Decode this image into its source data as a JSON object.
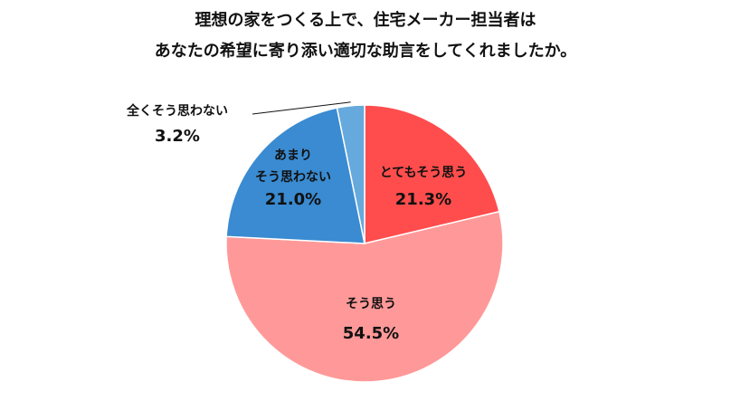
{
  "chart_data": {
    "type": "pie",
    "title_lines": [
      "理想の家をつくる上で、住宅メーカー担当者は",
      "あなたの希望に寄り添い適切な助言をしてくれましたか。"
    ],
    "slices": [
      {
        "label_lines": [
          "とてもそう思う"
        ],
        "value": 21.3,
        "value_label": "21.3%",
        "color": "#ff4d4d"
      },
      {
        "label_lines": [
          "そう思う"
        ],
        "value": 54.5,
        "value_label": "54.5%",
        "color": "#ff9999"
      },
      {
        "label_lines": [
          "あまり",
          "そう思わない"
        ],
        "value": 21.0,
        "value_label": "21.0%",
        "color": "#3a8bd1"
      },
      {
        "label_lines": [
          "全くそう思わない"
        ],
        "value": 3.2,
        "value_label": "3.2%",
        "color": "#66a9dc"
      }
    ],
    "start_angle": "12 o'clock",
    "direction": "clockwise",
    "legend": "none"
  }
}
